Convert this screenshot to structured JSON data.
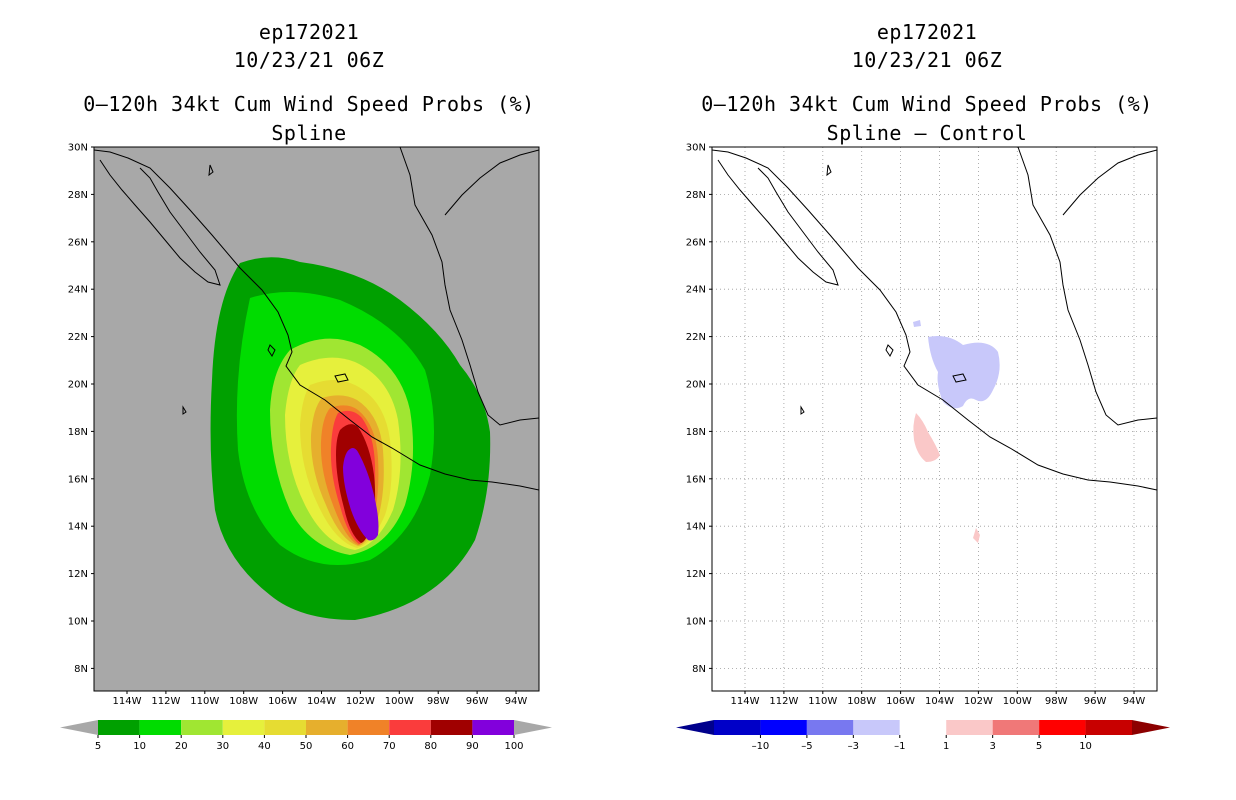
{
  "panels": [
    {
      "storm_id": "ep172021",
      "datetime": "10/23/21 06Z",
      "product": "0–120h 34kt Cum Wind Speed Probs (%)",
      "subtitle": "Spline",
      "lat_labels": [
        "8N",
        "10N",
        "12N",
        "14N",
        "16N",
        "18N",
        "20N",
        "22N",
        "24N",
        "26N",
        "28N",
        "30N"
      ],
      "lon_labels": [
        "114W",
        "112W",
        "110W",
        "108W",
        "106W",
        "104W",
        "102W",
        "100W",
        "98W",
        "96W",
        "94W"
      ],
      "legend": {
        "labels": [
          "5",
          "10",
          "20",
          "30",
          "40",
          "50",
          "60",
          "70",
          "80",
          "90",
          "100"
        ],
        "colors": [
          "#00a000",
          "#00dc00",
          "#a0e632",
          "#e6f03c",
          "#e6dc32",
          "#e6af2d",
          "#f08228",
          "#fa3c3c",
          "#a00000",
          "#8200dc"
        ],
        "under_color": "#a8a8a8",
        "over_color": "#a8a8a8"
      },
      "background_color": "#a8a8a8"
    },
    {
      "storm_id": "ep172021",
      "datetime": "10/23/21 06Z",
      "product": "0–120h 34kt Cum Wind Speed Probs (%)",
      "subtitle": "Spline – Control",
      "lat_labels": [
        "8N",
        "10N",
        "12N",
        "14N",
        "16N",
        "18N",
        "20N",
        "22N",
        "24N",
        "26N",
        "28N",
        "30N"
      ],
      "lon_labels": [
        "114W",
        "112W",
        "110W",
        "108W",
        "106W",
        "104W",
        "102W",
        "100W",
        "98W",
        "96W",
        "94W"
      ],
      "legend": {
        "labels": [
          "–10",
          "–5",
          "–3",
          "–1",
          "1",
          "3",
          "5",
          "10"
        ],
        "colors": [
          "#0000c8",
          "#0000ff",
          "#7878f0",
          "#c8c8fa",
          "#ffffff",
          "#fac8c8",
          "#f07878",
          "#ff0000",
          "#c80000"
        ],
        "under_color": "#00008c",
        "over_color": "#8c0000"
      },
      "background_color": "#ffffff"
    }
  ]
}
